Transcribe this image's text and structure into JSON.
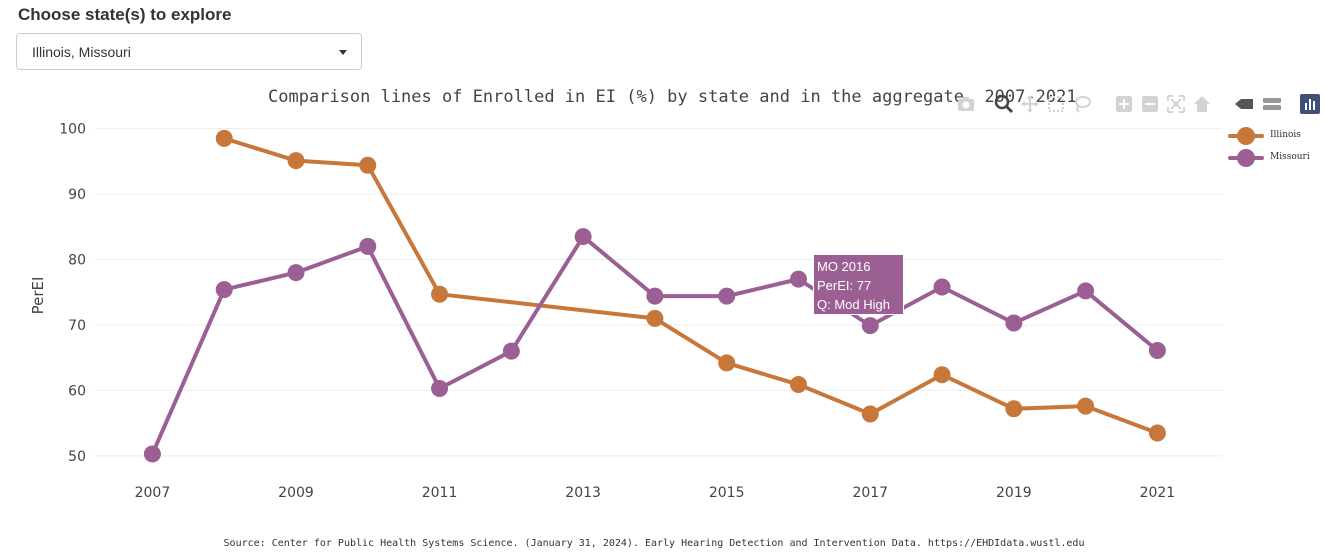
{
  "selector": {
    "label": "Choose state(s) to explore",
    "value": "Illinois, Missouri"
  },
  "modebar": {
    "icons": [
      "camera-icon",
      "zoom-icon",
      "pan-icon",
      "box-select-icon",
      "lasso-icon",
      "zoom-in-icon",
      "zoom-out-icon",
      "autoscale-icon",
      "home-icon",
      "hover-closest-icon",
      "hover-compare-icon",
      "plotly-logo-icon"
    ]
  },
  "tooltip": {
    "line1": "MO 2016",
    "line2": "PerEI: 77",
    "line3": "Q: Mod High"
  },
  "footer": {
    "source": "Source: Center for Public Health Systems Science. (January 31, 2024). Early Hearing Detection and Intervention Data. https://EHDIdata.wustl.edu"
  },
  "chart_data": {
    "type": "line",
    "title": "Comparison lines of Enrolled in EI (%) by state and in the aggregate, 2007-2021",
    "xlabel": "",
    "ylabel": "PerEI",
    "xlim": [
      2006.2,
      2021.9
    ],
    "ylim": [
      48,
      101
    ],
    "x_ticks": [
      "2007",
      "2009",
      "2011",
      "2013",
      "2015",
      "2017",
      "2019",
      "2021"
    ],
    "y_ticks": [
      "50",
      "60",
      "70",
      "80",
      "90",
      "100"
    ],
    "grid": true,
    "legend_position": "top-right",
    "series": [
      {
        "name": "Illinois",
        "color": "#c8773a",
        "points": [
          [
            2008,
            98.5
          ],
          [
            2009,
            95.1
          ],
          [
            2010,
            94.4
          ],
          [
            2011,
            74.7
          ],
          [
            2014,
            71.0
          ],
          [
            2015,
            64.2
          ],
          [
            2016,
            60.9
          ],
          [
            2017,
            56.4
          ],
          [
            2018,
            62.4
          ],
          [
            2019,
            57.2
          ],
          [
            2020,
            57.6
          ],
          [
            2021,
            53.5
          ]
        ]
      },
      {
        "name": "Missouri",
        "color": "#9c5f93",
        "points": [
          [
            2007,
            50.3
          ],
          [
            2008,
            75.4
          ],
          [
            2009,
            78.0
          ],
          [
            2010,
            82.0
          ],
          [
            2011,
            60.3
          ],
          [
            2012,
            66.0
          ],
          [
            2013,
            83.5
          ],
          [
            2014,
            74.4
          ],
          [
            2015,
            74.4
          ],
          [
            2016,
            77.0
          ],
          [
            2017,
            69.9
          ],
          [
            2018,
            75.8
          ],
          [
            2019,
            70.3
          ],
          [
            2020,
            75.2
          ],
          [
            2021,
            66.1
          ]
        ]
      }
    ]
  }
}
